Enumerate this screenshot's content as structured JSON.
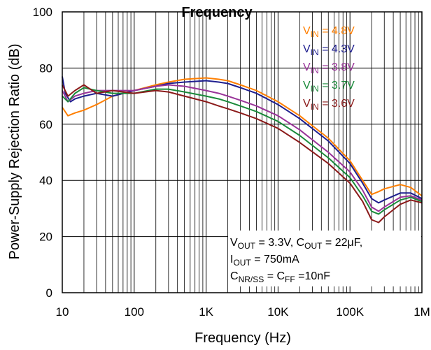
{
  "chart_data": {
    "type": "line",
    "title": "Frequency",
    "xlabel": "Frequency (Hz)",
    "ylabel": "Power-Supply Rejection Ratio (dB)",
    "xscale": "log",
    "xlim": [
      10,
      1000000
    ],
    "ylim": [
      0,
      100
    ],
    "grid": true,
    "x_ticks": [
      {
        "value": 10,
        "label": "10"
      },
      {
        "value": 100,
        "label": "100"
      },
      {
        "value": 1000,
        "label": "1K"
      },
      {
        "value": 10000,
        "label": "10K"
      },
      {
        "value": 100000,
        "label": "100K"
      },
      {
        "value": 1000000,
        "label": "1M"
      }
    ],
    "y_ticks": [
      {
        "value": 0,
        "label": "0"
      },
      {
        "value": 20,
        "label": "20"
      },
      {
        "value": 40,
        "label": "40"
      },
      {
        "value": 60,
        "label": "60"
      },
      {
        "value": 80,
        "label": "80"
      },
      {
        "value": 100,
        "label": "100"
      }
    ],
    "legend_position": "top-right",
    "series": [
      {
        "name": "VIN = 4.8V",
        "name_parts": {
          "main": "V",
          "sub": "IN",
          "rest": " = 4.8V"
        },
        "color": "#ff7f00",
        "x": [
          10,
          12,
          15,
          20,
          30,
          50,
          100,
          200,
          300,
          500,
          1000,
          1500,
          2000,
          3000,
          5000,
          10000,
          20000,
          50000,
          100000,
          150000,
          200000,
          250000,
          300000,
          500000,
          700000,
          1000000
        ],
        "y": [
          66,
          63,
          64,
          65,
          67,
          70,
          72,
          74,
          75,
          76,
          76.5,
          76,
          75.5,
          74,
          72,
          68,
          63,
          55,
          47,
          40,
          35,
          36,
          37,
          38.5,
          37.5,
          34.5
        ]
      },
      {
        "name": "VIN = 4.3V",
        "name_parts": {
          "main": "V",
          "sub": "IN",
          "rest": " = 4.3V"
        },
        "color": "#1f1f8f",
        "x": [
          10,
          11,
          13,
          15,
          20,
          30,
          50,
          100,
          200,
          300,
          500,
          1000,
          1500,
          2000,
          3000,
          5000,
          10000,
          20000,
          50000,
          100000,
          150000,
          200000,
          250000,
          300000,
          500000,
          700000,
          1000000
        ],
        "y": [
          77,
          71,
          68,
          69,
          70,
          71,
          70,
          72,
          73.5,
          74.5,
          75,
          75.5,
          75,
          74.5,
          73,
          71,
          67,
          62,
          54,
          46,
          39,
          33.5,
          32,
          33,
          35.5,
          35.5,
          33.5
        ]
      },
      {
        "name": "VIN = 3.8V",
        "name_parts": {
          "main": "V",
          "sub": "IN",
          "rest": " = 3.8V"
        },
        "color": "#993399",
        "x": [
          10,
          12,
          15,
          20,
          30,
          50,
          100,
          200,
          300,
          500,
          1000,
          1500,
          2000,
          3000,
          5000,
          10000,
          20000,
          50000,
          100000,
          150000,
          200000,
          250000,
          300000,
          500000,
          700000,
          1000000
        ],
        "y": [
          72,
          68,
          70,
          71,
          72,
          72,
          72,
          73.5,
          74,
          73.5,
          72,
          71,
          70,
          68.5,
          66.5,
          63,
          58,
          50,
          43,
          36.5,
          30.5,
          29,
          30.5,
          34,
          34.5,
          33
        ]
      },
      {
        "name": "VIN = 3.7V",
        "name_parts": {
          "main": "V",
          "sub": "IN",
          "rest": " = 3.7V"
        },
        "color": "#1a8a3a",
        "x": [
          10,
          12,
          15,
          20,
          30,
          50,
          100,
          200,
          300,
          500,
          1000,
          1500,
          2000,
          3000,
          5000,
          10000,
          20000,
          50000,
          100000,
          150000,
          200000,
          250000,
          300000,
          500000,
          700000,
          1000000
        ],
        "y": [
          70,
          68,
          71,
          73,
          72,
          71,
          71,
          72.5,
          72.5,
          71.5,
          70,
          69,
          68,
          66.5,
          64.5,
          61,
          56,
          48,
          41,
          34.5,
          29,
          28,
          29.5,
          33,
          34,
          32.5
        ]
      },
      {
        "name": "VIN = 3.6V",
        "name_parts": {
          "main": "V",
          "sub": "IN",
          "rest": " = 3.6V"
        },
        "color": "#8b1a1a",
        "x": [
          10,
          12,
          15,
          20,
          30,
          50,
          100,
          200,
          300,
          500,
          1000,
          1500,
          2000,
          3000,
          5000,
          10000,
          20000,
          50000,
          100000,
          150000,
          200000,
          250000,
          300000,
          500000,
          700000,
          1000000
        ],
        "y": [
          74,
          70,
          72,
          74,
          71,
          72,
          71,
          72,
          71.5,
          70,
          68,
          66.5,
          65.5,
          64,
          62,
          58.5,
          53.5,
          46,
          39,
          32.5,
          26,
          25,
          27,
          31.5,
          33,
          32
        ]
      }
    ],
    "annotations": [
      {
        "parts": [
          {
            "t": "V"
          },
          {
            "t": "OUT",
            "sub": true
          },
          {
            "t": " = 3.3V, C"
          },
          {
            "t": "OUT",
            "sub": true
          },
          {
            "t": " = 22μF,"
          }
        ]
      },
      {
        "parts": [
          {
            "t": "I"
          },
          {
            "t": "OUT",
            "sub": true
          },
          {
            "t": " = 750mA"
          }
        ]
      },
      {
        "parts": [
          {
            "t": "C"
          },
          {
            "t": "NR/SS",
            "sub": true
          },
          {
            "t": " = C"
          },
          {
            "t": "FF",
            "sub": true
          },
          {
            "t": " =10nF"
          }
        ]
      }
    ]
  }
}
